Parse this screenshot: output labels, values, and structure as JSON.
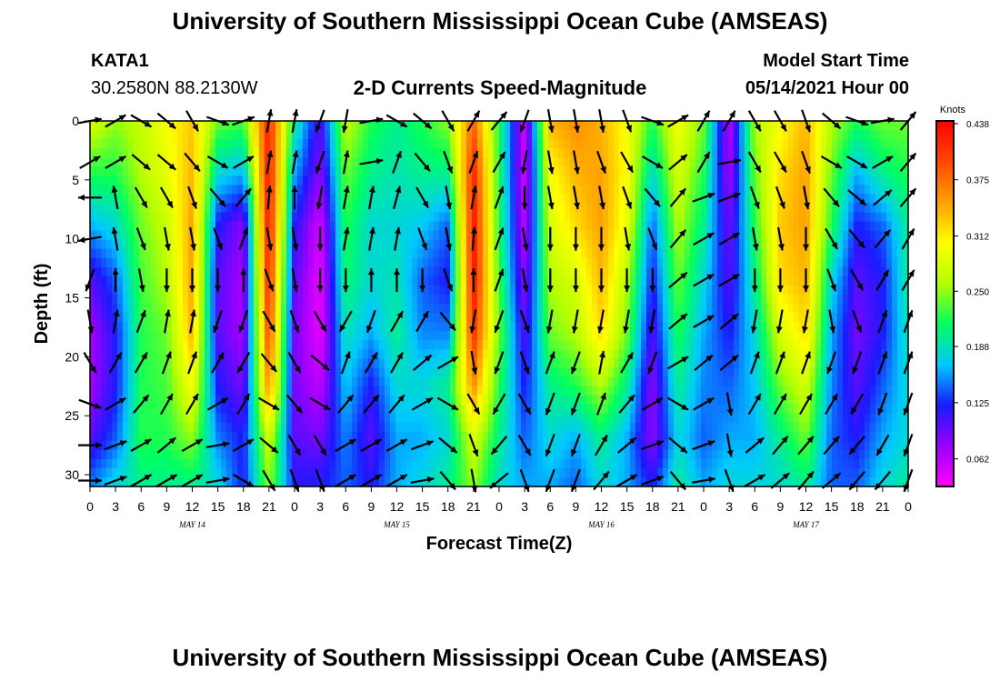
{
  "header": {
    "top_title": "University of Southern Mississippi Ocean Cube (AMSEAS)",
    "bottom_title": "University of Southern Mississippi Ocean Cube (AMSEAS)",
    "station_id": "KATA1",
    "station_coords": "30.2580N  88.2130W",
    "plot_title": "2-D Currents Speed-Magnitude",
    "model_label": "Model Start Time",
    "model_date": "05/14/2021 Hour 00"
  },
  "chart_data": {
    "type": "heatmap",
    "title": "2-D Currents Speed-Magnitude",
    "xlabel": "Forecast Time(Z)",
    "ylabel": "Depth (ft)",
    "xlim": [
      0,
      96
    ],
    "ylim": [
      31,
      0
    ],
    "x_ticks": [
      {
        "h": 0,
        "label": "0"
      },
      {
        "h": 3,
        "label": "3"
      },
      {
        "h": 6,
        "label": "6"
      },
      {
        "h": 9,
        "label": "9"
      },
      {
        "h": 12,
        "label": "12"
      },
      {
        "h": 15,
        "label": "15"
      },
      {
        "h": 18,
        "label": "18"
      },
      {
        "h": 21,
        "label": "21"
      },
      {
        "h": 24,
        "label": "0"
      },
      {
        "h": 27,
        "label": "3"
      },
      {
        "h": 30,
        "label": "6"
      },
      {
        "h": 33,
        "label": "9"
      },
      {
        "h": 36,
        "label": "12"
      },
      {
        "h": 39,
        "label": "15"
      },
      {
        "h": 42,
        "label": "18"
      },
      {
        "h": 45,
        "label": "21"
      },
      {
        "h": 48,
        "label": "0"
      },
      {
        "h": 51,
        "label": "3"
      },
      {
        "h": 54,
        "label": "6"
      },
      {
        "h": 57,
        "label": "9"
      },
      {
        "h": 60,
        "label": "12"
      },
      {
        "h": 63,
        "label": "15"
      },
      {
        "h": 66,
        "label": "18"
      },
      {
        "h": 69,
        "label": "21"
      },
      {
        "h": 72,
        "label": "0"
      },
      {
        "h": 75,
        "label": "3"
      },
      {
        "h": 78,
        "label": "6"
      },
      {
        "h": 81,
        "label": "9"
      },
      {
        "h": 84,
        "label": "12"
      },
      {
        "h": 87,
        "label": "15"
      },
      {
        "h": 90,
        "label": "18"
      },
      {
        "h": 93,
        "label": "21"
      },
      {
        "h": 96,
        "label": "0"
      }
    ],
    "day_labels": [
      {
        "h": 12,
        "label": "MAY 14"
      },
      {
        "h": 36,
        "label": "MAY 15"
      },
      {
        "h": 60,
        "label": "MAY 16"
      },
      {
        "h": 84,
        "label": "MAY 17"
      }
    ],
    "y_ticks": [
      0,
      5,
      10,
      15,
      20,
      25,
      30
    ],
    "colorbar": {
      "unit": "Knots",
      "range": [
        0.031,
        0.441
      ],
      "ticks": [
        "0.438",
        "0.375",
        "0.312",
        "0.250",
        "0.188",
        "0.125",
        "0.062"
      ],
      "colors": [
        "#ff00ff",
        "#9b00ff",
        "#1a1aff",
        "#00c8ff",
        "#00ff60",
        "#b4ff00",
        "#ffff00",
        "#ffa000",
        "#ff4800",
        "#ff0000"
      ]
    },
    "speed_by_hour": [
      {
        "h": 0,
        "v": [
          0.28,
          0.22,
          0.16,
          0.1,
          0.07,
          0.07,
          0.1,
          0.15
        ]
      },
      {
        "h": 3,
        "v": [
          0.25,
          0.22,
          0.18,
          0.14,
          0.12,
          0.12,
          0.14,
          0.18
        ]
      },
      {
        "h": 6,
        "v": [
          0.27,
          0.26,
          0.24,
          0.23,
          0.22,
          0.22,
          0.22,
          0.2
        ]
      },
      {
        "h": 9,
        "v": [
          0.3,
          0.29,
          0.27,
          0.26,
          0.24,
          0.23,
          0.22,
          0.2
        ]
      },
      {
        "h": 12,
        "v": [
          0.33,
          0.34,
          0.35,
          0.35,
          0.34,
          0.3,
          0.25,
          0.2
        ]
      },
      {
        "h": 15,
        "v": [
          0.24,
          0.18,
          0.12,
          0.1,
          0.1,
          0.12,
          0.15,
          0.18
        ]
      },
      {
        "h": 18,
        "v": [
          0.23,
          0.16,
          0.08,
          0.07,
          0.07,
          0.09,
          0.12,
          0.12
        ]
      },
      {
        "h": 21,
        "v": [
          0.42,
          0.43,
          0.43,
          0.42,
          0.4,
          0.36,
          0.28,
          0.25
        ]
      },
      {
        "h": 24,
        "v": [
          0.2,
          0.16,
          0.12,
          0.1,
          0.09,
          0.09,
          0.1,
          0.12
        ]
      },
      {
        "h": 27,
        "v": [
          0.1,
          0.08,
          0.05,
          0.04,
          0.04,
          0.06,
          0.09,
          0.12
        ]
      },
      {
        "h": 30,
        "v": [
          0.27,
          0.24,
          0.22,
          0.21,
          0.19,
          0.17,
          0.15,
          0.14
        ]
      },
      {
        "h": 33,
        "v": [
          0.22,
          0.2,
          0.18,
          0.18,
          0.16,
          0.12,
          0.1,
          0.12
        ]
      },
      {
        "h": 36,
        "v": [
          0.2,
          0.19,
          0.18,
          0.19,
          0.2,
          0.18,
          0.16,
          0.16
        ]
      },
      {
        "h": 39,
        "v": [
          0.22,
          0.2,
          0.17,
          0.14,
          0.15,
          0.18,
          0.16,
          0.18
        ]
      },
      {
        "h": 42,
        "v": [
          0.25,
          0.2,
          0.14,
          0.12,
          0.15,
          0.2,
          0.18,
          0.2
        ]
      },
      {
        "h": 45,
        "v": [
          0.38,
          0.42,
          0.43,
          0.43,
          0.41,
          0.36,
          0.28,
          0.25
        ]
      },
      {
        "h": 48,
        "v": [
          0.22,
          0.22,
          0.22,
          0.23,
          0.24,
          0.22,
          0.2,
          0.18
        ]
      },
      {
        "h": 51,
        "v": [
          0.05,
          0.05,
          0.06,
          0.08,
          0.1,
          0.12,
          0.14,
          0.16
        ]
      },
      {
        "h": 54,
        "v": [
          0.34,
          0.3,
          0.28,
          0.26,
          0.24,
          0.2,
          0.18,
          0.16
        ]
      },
      {
        "h": 57,
        "v": [
          0.36,
          0.34,
          0.32,
          0.28,
          0.26,
          0.22,
          0.16,
          0.14
        ]
      },
      {
        "h": 60,
        "v": [
          0.34,
          0.35,
          0.35,
          0.34,
          0.32,
          0.26,
          0.2,
          0.18
        ]
      },
      {
        "h": 63,
        "v": [
          0.3,
          0.3,
          0.29,
          0.26,
          0.24,
          0.2,
          0.16,
          0.16
        ]
      },
      {
        "h": 66,
        "v": [
          0.22,
          0.18,
          0.14,
          0.12,
          0.1,
          0.08,
          0.08,
          0.12
        ]
      },
      {
        "h": 69,
        "v": [
          0.3,
          0.28,
          0.26,
          0.24,
          0.22,
          0.2,
          0.18,
          0.2
        ]
      },
      {
        "h": 72,
        "v": [
          0.24,
          0.22,
          0.2,
          0.18,
          0.16,
          0.15,
          0.14,
          0.16
        ]
      },
      {
        "h": 75,
        "v": [
          0.06,
          0.07,
          0.09,
          0.1,
          0.12,
          0.14,
          0.16,
          0.18
        ]
      },
      {
        "h": 78,
        "v": [
          0.26,
          0.24,
          0.22,
          0.2,
          0.18,
          0.17,
          0.16,
          0.18
        ]
      },
      {
        "h": 81,
        "v": [
          0.3,
          0.32,
          0.33,
          0.32,
          0.28,
          0.24,
          0.2,
          0.18
        ]
      },
      {
        "h": 84,
        "v": [
          0.34,
          0.35,
          0.35,
          0.34,
          0.32,
          0.28,
          0.24,
          0.2
        ]
      },
      {
        "h": 87,
        "v": [
          0.26,
          0.24,
          0.22,
          0.18,
          0.16,
          0.15,
          0.14,
          0.14
        ]
      },
      {
        "h": 90,
        "v": [
          0.22,
          0.16,
          0.12,
          0.1,
          0.09,
          0.1,
          0.12,
          0.14
        ]
      },
      {
        "h": 93,
        "v": [
          0.24,
          0.2,
          0.14,
          0.12,
          0.12,
          0.14,
          0.16,
          0.18
        ]
      },
      {
        "h": 96,
        "v": [
          0.24,
          0.22,
          0.2,
          0.2,
          0.19,
          0.18,
          0.18,
          0.2
        ]
      }
    ],
    "speed_depths_ft": [
      0,
      4.5,
      9,
      13.5,
      18,
      22.5,
      27,
      31
    ],
    "vector_depths_ft": [
      0,
      3.5,
      6.5,
      10,
      13.5,
      17,
      20.5,
      24,
      27.5,
      30.5
    ],
    "vectors_by_hour": [
      {
        "h": 0,
        "dir": [
          80,
          60,
          270,
          260,
          200,
          170,
          150,
          110,
          90,
          90
        ]
      },
      {
        "h": 3,
        "dir": [
          60,
          60,
          350,
          350,
          0,
          10,
          30,
          60,
          70,
          70
        ]
      },
      {
        "h": 6,
        "dir": [
          120,
          130,
          150,
          160,
          170,
          20,
          30,
          40,
          60,
          60
        ]
      },
      {
        "h": 9,
        "dir": [
          130,
          130,
          150,
          170,
          180,
          10,
          20,
          30,
          50,
          60
        ]
      },
      {
        "h": 12,
        "dir": [
          150,
          140,
          160,
          170,
          180,
          10,
          20,
          30,
          60,
          60
        ]
      },
      {
        "h": 15,
        "dir": [
          110,
          120,
          140,
          160,
          180,
          200,
          30,
          60,
          80,
          80
        ]
      },
      {
        "h": 18,
        "dir": [
          70,
          60,
          40,
          20,
          0,
          200,
          210,
          30,
          60,
          120
        ]
      },
      {
        "h": 21,
        "dir": [
          10,
          10,
          5,
          170,
          160,
          150,
          140,
          120,
          130,
          150
        ]
      },
      {
        "h": 24,
        "dir": [
          10,
          10,
          0,
          170,
          170,
          160,
          150,
          140,
          150,
          160
        ]
      },
      {
        "h": 27,
        "dir": [
          200,
          200,
          190,
          180,
          180,
          150,
          130,
          120,
          150,
          160
        ]
      },
      {
        "h": 30,
        "dir": [
          190,
          10,
          10,
          10,
          180,
          210,
          20,
          40,
          60,
          60
        ]
      },
      {
        "h": 33,
        "dir": [
          80,
          80,
          10,
          10,
          0,
          200,
          30,
          40,
          60,
          60
        ]
      },
      {
        "h": 36,
        "dir": [
          120,
          20,
          15,
          10,
          0,
          30,
          30,
          40,
          60,
          60
        ]
      },
      {
        "h": 39,
        "dir": [
          130,
          140,
          150,
          160,
          180,
          30,
          50,
          60,
          70,
          80
        ]
      },
      {
        "h": 42,
        "dir": [
          150,
          160,
          170,
          170,
          160,
          140,
          60,
          120,
          130,
          140
        ]
      },
      {
        "h": 45,
        "dir": [
          30,
          20,
          10,
          5,
          0,
          190,
          170,
          150,
          160,
          170
        ]
      },
      {
        "h": 48,
        "dir": [
          40,
          30,
          20,
          20,
          20,
          200,
          200,
          210,
          220,
          230
        ]
      },
      {
        "h": 51,
        "dir": [
          200,
          190,
          180,
          170,
          170,
          160,
          160,
          150,
          150,
          160
        ]
      },
      {
        "h": 54,
        "dir": [
          170,
          170,
          170,
          180,
          180,
          190,
          20,
          200,
          200,
          200
        ]
      },
      {
        "h": 57,
        "dir": [
          170,
          170,
          170,
          180,
          180,
          190,
          200,
          200,
          200,
          200
        ]
      },
      {
        "h": 60,
        "dir": [
          170,
          160,
          170,
          180,
          180,
          190,
          10,
          20,
          30,
          40
        ]
      },
      {
        "h": 63,
        "dir": [
          160,
          150,
          160,
          170,
          180,
          190,
          30,
          40,
          50,
          60
        ]
      },
      {
        "h": 66,
        "dir": [
          110,
          120,
          140,
          160,
          180,
          190,
          200,
          60,
          70,
          70
        ]
      },
      {
        "h": 69,
        "dir": [
          60,
          50,
          40,
          40,
          50,
          50,
          60,
          120,
          130,
          140
        ]
      },
      {
        "h": 72,
        "dir": [
          30,
          30,
          70,
          60,
          60,
          60,
          50,
          60,
          70,
          80
        ]
      },
      {
        "h": 75,
        "dir": [
          30,
          80,
          70,
          60,
          60,
          50,
          50,
          170,
          170,
          160
        ]
      },
      {
        "h": 78,
        "dir": [
          150,
          150,
          160,
          170,
          180,
          190,
          20,
          30,
          50,
          60
        ]
      },
      {
        "h": 81,
        "dir": [
          150,
          150,
          160,
          170,
          180,
          190,
          20,
          30,
          40,
          50
        ]
      },
      {
        "h": 84,
        "dir": [
          160,
          160,
          170,
          180,
          180,
          190,
          20,
          30,
          40,
          40
        ]
      },
      {
        "h": 87,
        "dir": [
          130,
          120,
          140,
          150,
          160,
          170,
          200,
          30,
          40,
          50
        ]
      },
      {
        "h": 90,
        "dir": [
          110,
          120,
          130,
          140,
          150,
          160,
          200,
          210,
          220,
          220
        ]
      },
      {
        "h": 93,
        "dir": [
          80,
          60,
          50,
          40,
          30,
          20,
          20,
          200,
          210,
          220
        ]
      },
      {
        "h": 96,
        "dir": [
          40,
          40,
          40,
          30,
          30,
          20,
          20,
          200,
          200,
          200
        ]
      }
    ]
  }
}
